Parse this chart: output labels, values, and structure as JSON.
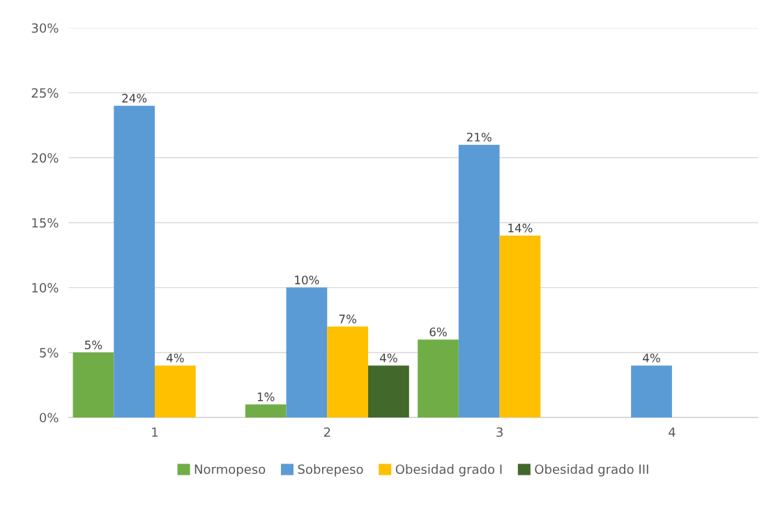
{
  "chart_data": {
    "type": "bar",
    "categories": [
      "1",
      "2",
      "3",
      "4"
    ],
    "series": [
      {
        "name": "Normopeso",
        "color": "#70ad47",
        "values": [
          5,
          1,
          6,
          null
        ],
        "value_labels": [
          "5%",
          "1%",
          "6%",
          null
        ]
      },
      {
        "name": "Sobrepeso",
        "color": "#5b9bd5",
        "values": [
          24,
          10,
          21,
          4
        ],
        "value_labels": [
          "24%",
          "10%",
          "21%",
          "4%"
        ]
      },
      {
        "name": "Obesidad grado I",
        "color": "#ffc000",
        "values": [
          4,
          7,
          14,
          null
        ],
        "value_labels": [
          "4%",
          "7%",
          "14%",
          null
        ]
      },
      {
        "name": "Obesidad grado III",
        "color": "#43682b",
        "values": [
          null,
          4,
          null,
          null
        ],
        "value_labels": [
          null,
          "4%",
          null,
          null
        ]
      }
    ],
    "ylim": [
      0,
      30
    ],
    "yticks": [
      {
        "value": 0,
        "label": "0%"
      },
      {
        "value": 5,
        "label": "5%"
      },
      {
        "value": 10,
        "label": "10%"
      },
      {
        "value": 15,
        "label": "15%"
      },
      {
        "value": 20,
        "label": "20%"
      },
      {
        "value": 25,
        "label": "25%"
      },
      {
        "value": 30,
        "label": "30%"
      }
    ],
    "grid": "y",
    "legend": "bottom"
  }
}
